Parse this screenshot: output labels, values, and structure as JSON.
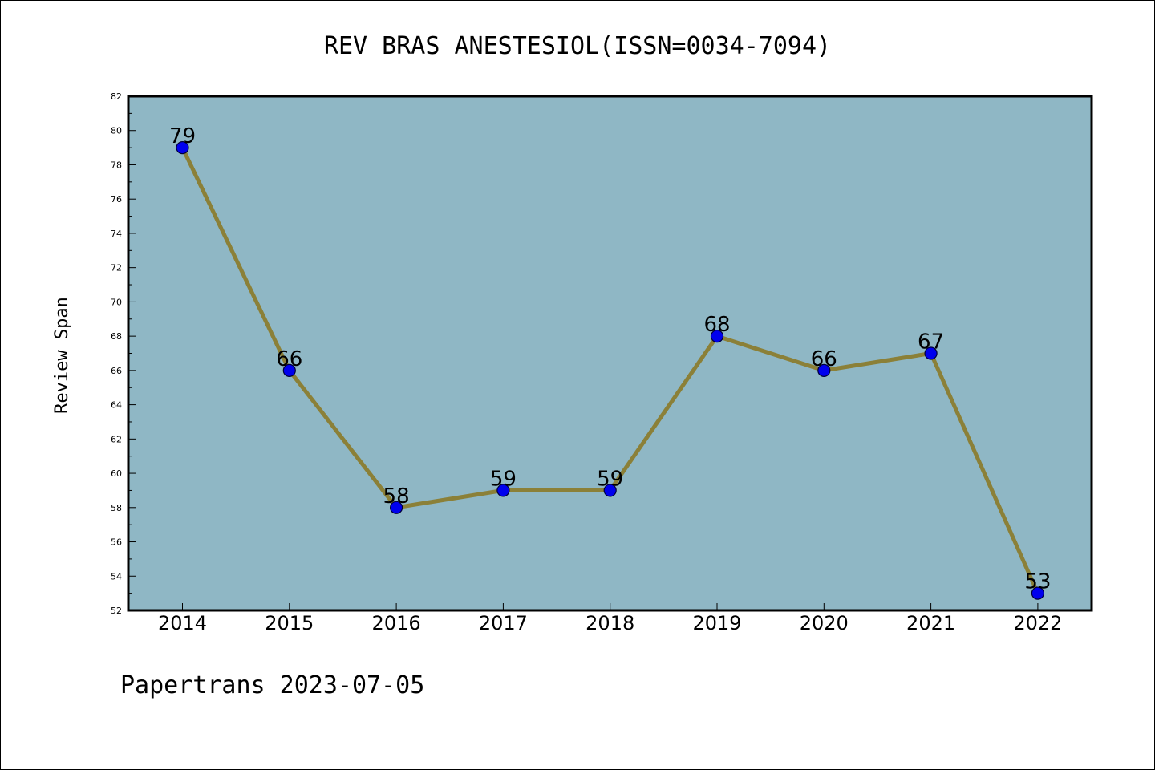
{
  "chart_data": {
    "type": "line",
    "title": "REV BRAS ANESTESIOL(ISSN=0034-7094)",
    "xlabel": "",
    "ylabel": "Review Span",
    "categories": [
      "2014",
      "2015",
      "2016",
      "2017",
      "2018",
      "2019",
      "2020",
      "2021",
      "2022"
    ],
    "series": [
      {
        "values": [
          79,
          66,
          58,
          59,
          59,
          68,
          66,
          67,
          53
        ]
      }
    ],
    "data_labels": [
      "79",
      "66",
      "58",
      "59",
      "59",
      "68",
      "66",
      "67",
      "53"
    ],
    "ylim": [
      52,
      82
    ],
    "yticks": [
      "52",
      "54",
      "56",
      "58",
      "60",
      "62",
      "64",
      "66",
      "68",
      "70",
      "72",
      "74",
      "76",
      "78",
      "80",
      "82"
    ],
    "grid": false,
    "legend": "none",
    "colors": {
      "plot_background": "#8fb7c5",
      "line": "#8b8038",
      "marker": "#0000ee",
      "marker_edge": "#00003a"
    }
  },
  "footer": {
    "text": "Papertrans 2023-07-05"
  }
}
